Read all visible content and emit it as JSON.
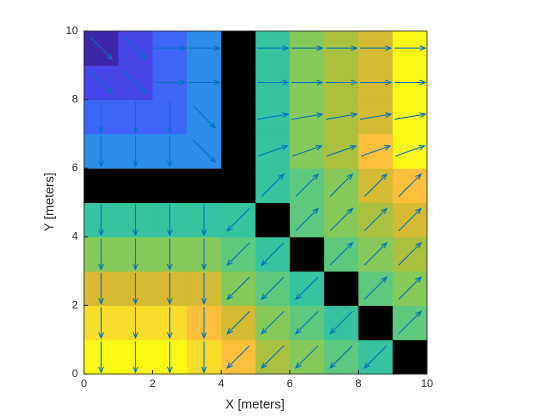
{
  "chart_data": {
    "type": "heatmap-quiver",
    "xlabel": "X [meters]",
    "ylabel": "Y [meters]",
    "xlim": [
      0,
      10
    ],
    "ylim": [
      0,
      10
    ],
    "xticks": [
      0,
      2,
      4,
      6,
      8,
      10
    ],
    "yticks": [
      0,
      2,
      4,
      6,
      8,
      10
    ],
    "x": [
      0.5,
      1.5,
      2.5,
      3.5,
      4.5,
      5.5,
      6.5,
      7.5,
      8.5,
      9.5
    ],
    "y": [
      0.5,
      1.5,
      2.5,
      3.5,
      4.5,
      5.5,
      6.5,
      7.5,
      8.5,
      9.5
    ],
    "clim": [
      1,
      12
    ],
    "colormap": [
      "#3e26a8",
      "#4745e8",
      "#3d66f7",
      "#2b8de8",
      "#36c3a0",
      "#5ec97e",
      "#85c95a",
      "#aac140",
      "#d4bb33",
      "#fcbf3c",
      "#f7dd2a",
      "#f9f914"
    ],
    "null_color": "#000000",
    "arrow_color": "#0072bd",
    "values": [
      [
        12,
        12,
        12,
        11,
        10,
        8,
        7,
        6,
        5,
        null
      ],
      [
        11,
        11,
        11,
        10,
        9,
        7,
        6,
        5,
        null,
        6
      ],
      [
        9,
        9,
        9,
        9,
        7,
        6,
        5,
        null,
        6,
        7
      ],
      [
        7,
        7,
        7,
        7,
        6,
        5,
        null,
        6,
        7,
        8
      ],
      [
        5,
        5,
        5,
        5,
        5,
        null,
        6,
        7,
        8,
        9
      ],
      [
        null,
        null,
        null,
        null,
        null,
        5,
        6,
        7,
        9,
        10
      ],
      [
        4,
        4,
        4,
        4,
        null,
        5,
        7,
        8,
        10,
        12
      ],
      [
        3,
        3,
        3,
        4,
        null,
        5,
        7,
        8,
        9,
        12
      ],
      [
        2,
        2,
        3,
        4,
        null,
        5,
        7,
        8,
        9,
        12
      ],
      [
        1,
        2,
        3,
        4,
        null,
        5,
        7,
        8,
        9,
        12
      ]
    ],
    "u": [
      [
        0,
        0,
        0,
        0,
        -0.65,
        -0.65,
        -0.65,
        -0.65,
        -0.65,
        null
      ],
      [
        0,
        0,
        0,
        0,
        -0.65,
        -0.65,
        -0.65,
        -0.65,
        null,
        0.65
      ],
      [
        0,
        0,
        0,
        0,
        -0.65,
        -0.65,
        -0.65,
        null,
        0.65,
        0.65
      ],
      [
        0,
        0,
        0,
        0,
        -0.65,
        -0.65,
        null,
        0.65,
        0.65,
        0.65
      ],
      [
        0,
        0,
        0,
        0,
        -0.65,
        null,
        0.65,
        0.65,
        0.65,
        0.65
      ],
      [
        null,
        null,
        null,
        null,
        null,
        0.65,
        0.65,
        0.65,
        0.65,
        0.65
      ],
      [
        0,
        0,
        0,
        0.65,
        null,
        0.85,
        0.85,
        0.85,
        0.85,
        0.85
      ],
      [
        0,
        0,
        0,
        0.65,
        null,
        0.9,
        0.9,
        0.9,
        0.9,
        0.9
      ],
      [
        0.65,
        0.65,
        0.9,
        0.9,
        null,
        0.9,
        0.9,
        0.9,
        0.9,
        0.9
      ],
      [
        0.65,
        0.65,
        0.9,
        0.9,
        null,
        0.9,
        0.9,
        0.9,
        0.9,
        0.9
      ]
    ],
    "v": [
      [
        -0.9,
        -0.9,
        -0.9,
        -0.9,
        -0.65,
        -0.65,
        -0.65,
        -0.65,
        -0.65,
        null
      ],
      [
        -0.9,
        -0.9,
        -0.9,
        -0.9,
        -0.65,
        -0.65,
        -0.65,
        -0.65,
        null,
        0.65
      ],
      [
        -0.9,
        -0.9,
        -0.9,
        -0.9,
        -0.65,
        -0.65,
        -0.65,
        null,
        0.65,
        0.65
      ],
      [
        -0.9,
        -0.9,
        -0.9,
        -0.9,
        -0.65,
        -0.65,
        null,
        0.65,
        0.65,
        0.65
      ],
      [
        -0.9,
        -0.9,
        -0.9,
        -0.9,
        -0.65,
        null,
        0.65,
        0.65,
        0.65,
        0.65
      ],
      [
        null,
        null,
        null,
        null,
        null,
        0.65,
        0.65,
        0.65,
        0.65,
        0.65
      ],
      [
        -0.9,
        -0.9,
        -0.9,
        -0.65,
        null,
        0.3,
        0.3,
        0.3,
        0.3,
        0.3
      ],
      [
        -0.9,
        -0.9,
        -0.9,
        -0.65,
        null,
        0.15,
        0.15,
        0.15,
        0.15,
        0.15
      ],
      [
        -0.65,
        -0.65,
        0,
        0,
        null,
        0,
        0,
        0,
        0,
        0
      ],
      [
        -0.65,
        -0.65,
        0,
        0,
        null,
        0,
        0,
        0,
        0,
        0
      ]
    ]
  }
}
